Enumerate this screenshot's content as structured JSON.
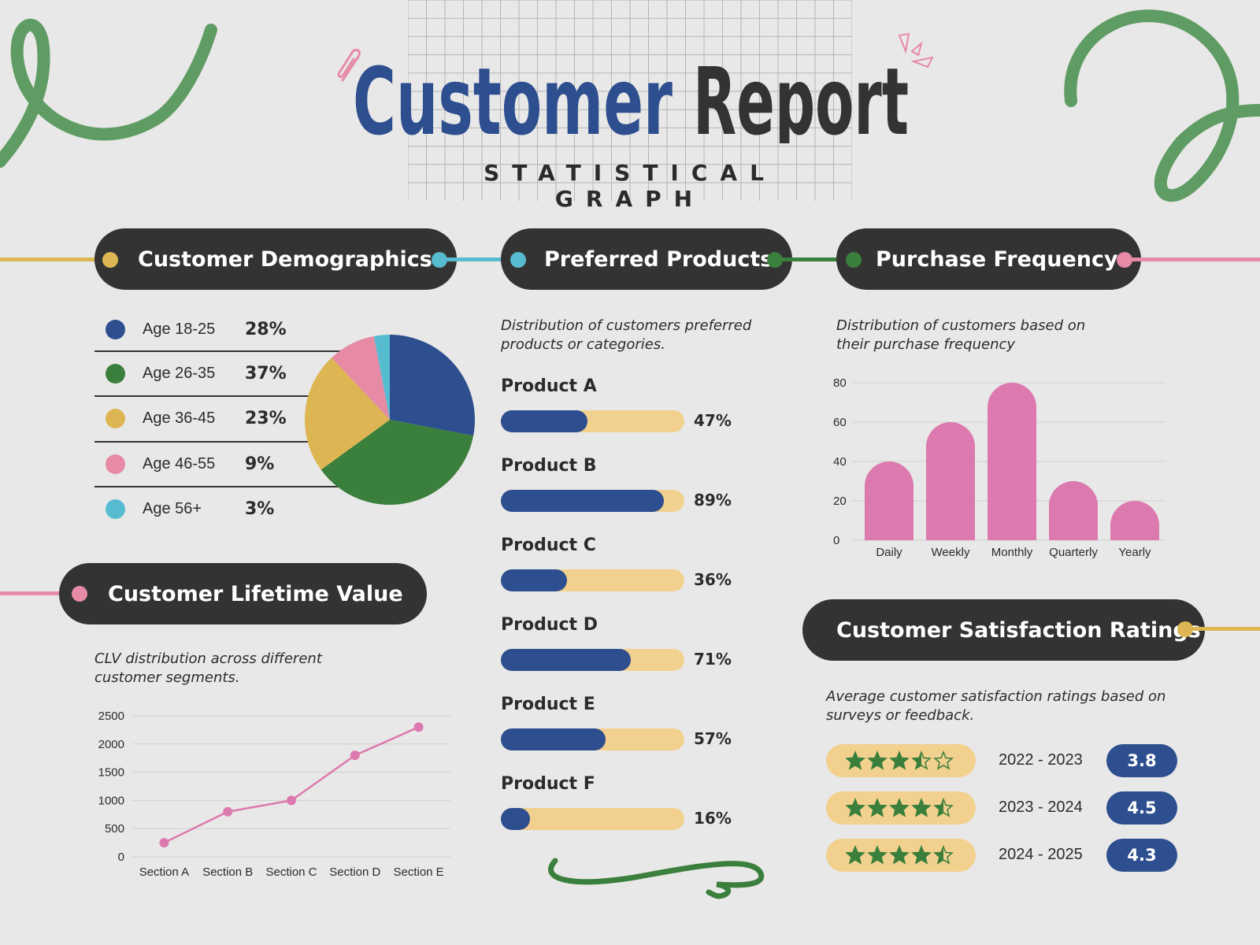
{
  "header": {
    "title_part1": "Customer",
    "title_part2": "Report",
    "subtitle": "STATISTICAL GRAPH"
  },
  "sections": {
    "demographics": {
      "title": "Customer Demographics"
    },
    "products": {
      "title": "Preferred Products",
      "description": "Distribution of customers preferred products or categories."
    },
    "frequency": {
      "title": "Purchase Frequency",
      "description": "Distribution of customers based on their purchase frequency"
    },
    "clv": {
      "title": "Customer Lifetime Value",
      "description": "CLV distribution across different customer segments."
    },
    "satisfaction": {
      "title": "Customer Satisfaction Ratings",
      "description": "Average customer satisfaction ratings based on surveys or feedback."
    }
  },
  "colors": {
    "navy": "#2d4e8f",
    "green": "#3a7f3b",
    "yellow": "#ddb653",
    "pink": "#e68aa6",
    "cyan": "#58bcd0",
    "bar_pink": "#dc79ae",
    "track": "#f2d08e",
    "pill": "#333333"
  },
  "chart_data": [
    {
      "type": "pie",
      "categories": [
        "Age 18-25",
        "Age 26-35",
        "Age 36-45",
        "Age 46-55",
        "Age 56+"
      ],
      "labels": [
        "28%",
        "37%",
        "23%",
        "9%",
        "3%"
      ],
      "values": [
        28,
        37,
        23,
        9,
        3
      ],
      "colors": [
        "#2d4e8f",
        "#3a7f3b",
        "#ddb653",
        "#e68aa6",
        "#58bcd0"
      ]
    },
    {
      "type": "bar",
      "categories": [
        "Product A",
        "Product B",
        "Product C",
        "Product D",
        "Product E",
        "Product F"
      ],
      "labels": [
        "47%",
        "89%",
        "36%",
        "71%",
        "57%",
        "16%"
      ],
      "values": [
        47,
        89,
        36,
        71,
        57,
        16
      ],
      "ylim": [
        0,
        100
      ]
    },
    {
      "type": "bar",
      "categories": [
        "Daily",
        "Weekly",
        "Monthly",
        "Quarterly",
        "Yearly"
      ],
      "values": [
        40,
        60,
        80,
        30,
        20
      ],
      "ylim": [
        0,
        80
      ],
      "yticks": [
        "0",
        "20",
        "40",
        "60",
        "80"
      ],
      "grid": true
    },
    {
      "type": "line",
      "categories": [
        "Section A",
        "Section B",
        "Section C",
        "Section D",
        "Section E"
      ],
      "values": [
        250,
        800,
        1000,
        1800,
        2300
      ],
      "ylim": [
        0,
        2500
      ],
      "yticks": [
        "0",
        "500",
        "1000",
        "1500",
        "2000",
        "2500"
      ],
      "grid": true
    },
    {
      "type": "table",
      "rows": [
        {
          "period": "2022 - 2023",
          "rating": "3.8",
          "stars": 3.5
        },
        {
          "period": "2023 - 2024",
          "rating": "4.5",
          "stars": 4.5
        },
        {
          "period": "2024 - 2025",
          "rating": "4.3",
          "stars": 4.5
        }
      ],
      "max_stars": 5
    }
  ]
}
